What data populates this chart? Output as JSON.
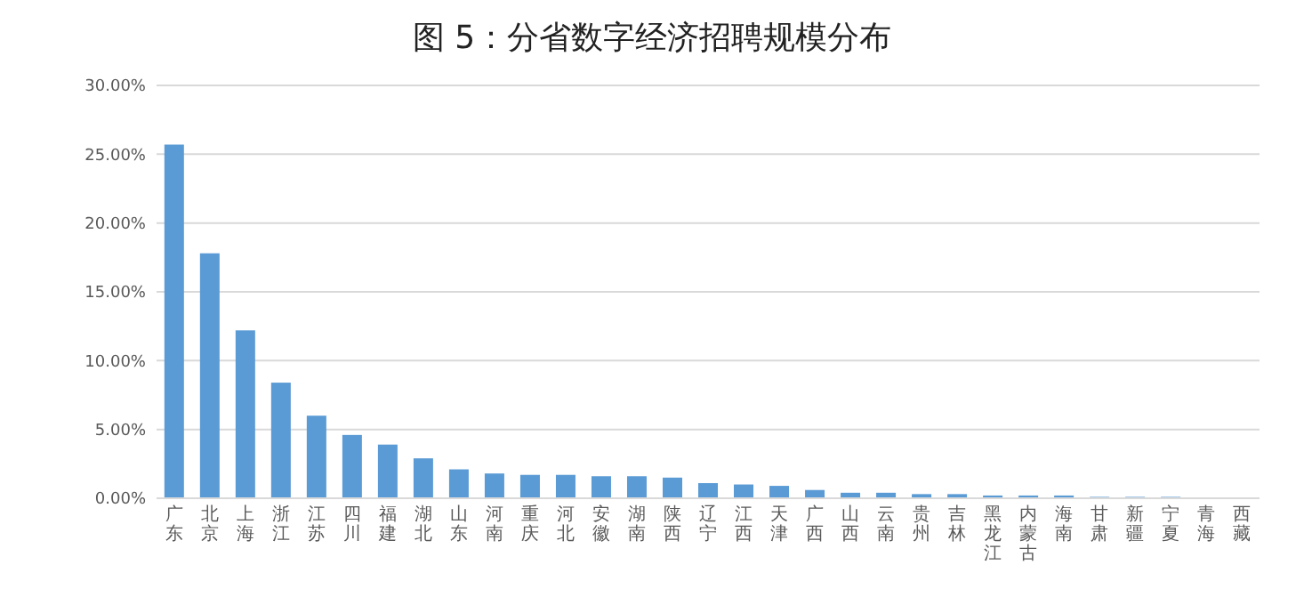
{
  "chart_data": {
    "type": "bar",
    "title": "图 5：分省数字经济招聘规模分布",
    "categories": [
      "广东",
      "北京",
      "上海",
      "浙江",
      "江苏",
      "四川",
      "福建",
      "湖北",
      "山东",
      "河南",
      "重庆",
      "河北",
      "安徽",
      "湖南",
      "陕西",
      "辽宁",
      "江西",
      "天津",
      "广西",
      "山西",
      "云南",
      "贵州",
      "吉林",
      "黑龙江",
      "内蒙古",
      "海南",
      "甘肃",
      "新疆",
      "宁夏",
      "青海",
      "西藏"
    ],
    "values": [
      25.7,
      17.8,
      12.2,
      8.4,
      6.0,
      4.6,
      3.9,
      2.9,
      2.1,
      1.8,
      1.7,
      1.7,
      1.6,
      1.6,
      1.5,
      1.1,
      1.0,
      0.9,
      0.6,
      0.4,
      0.4,
      0.3,
      0.3,
      0.2,
      0.2,
      0.2,
      0.1,
      0.1,
      0.1,
      0,
      0
    ],
    "color": "#5b9bd5",
    "ylim": [
      0,
      30
    ],
    "yticks": [
      {
        "value": 0,
        "label": "0.00%"
      },
      {
        "value": 5,
        "label": "5.00%"
      },
      {
        "value": 10,
        "label": "10.00%"
      },
      {
        "value": 15,
        "label": "15.00%"
      },
      {
        "value": 20,
        "label": "20.00%"
      },
      {
        "value": 25,
        "label": "25.00%"
      },
      {
        "value": 30,
        "label": "30.00%"
      }
    ],
    "grid": "y"
  }
}
